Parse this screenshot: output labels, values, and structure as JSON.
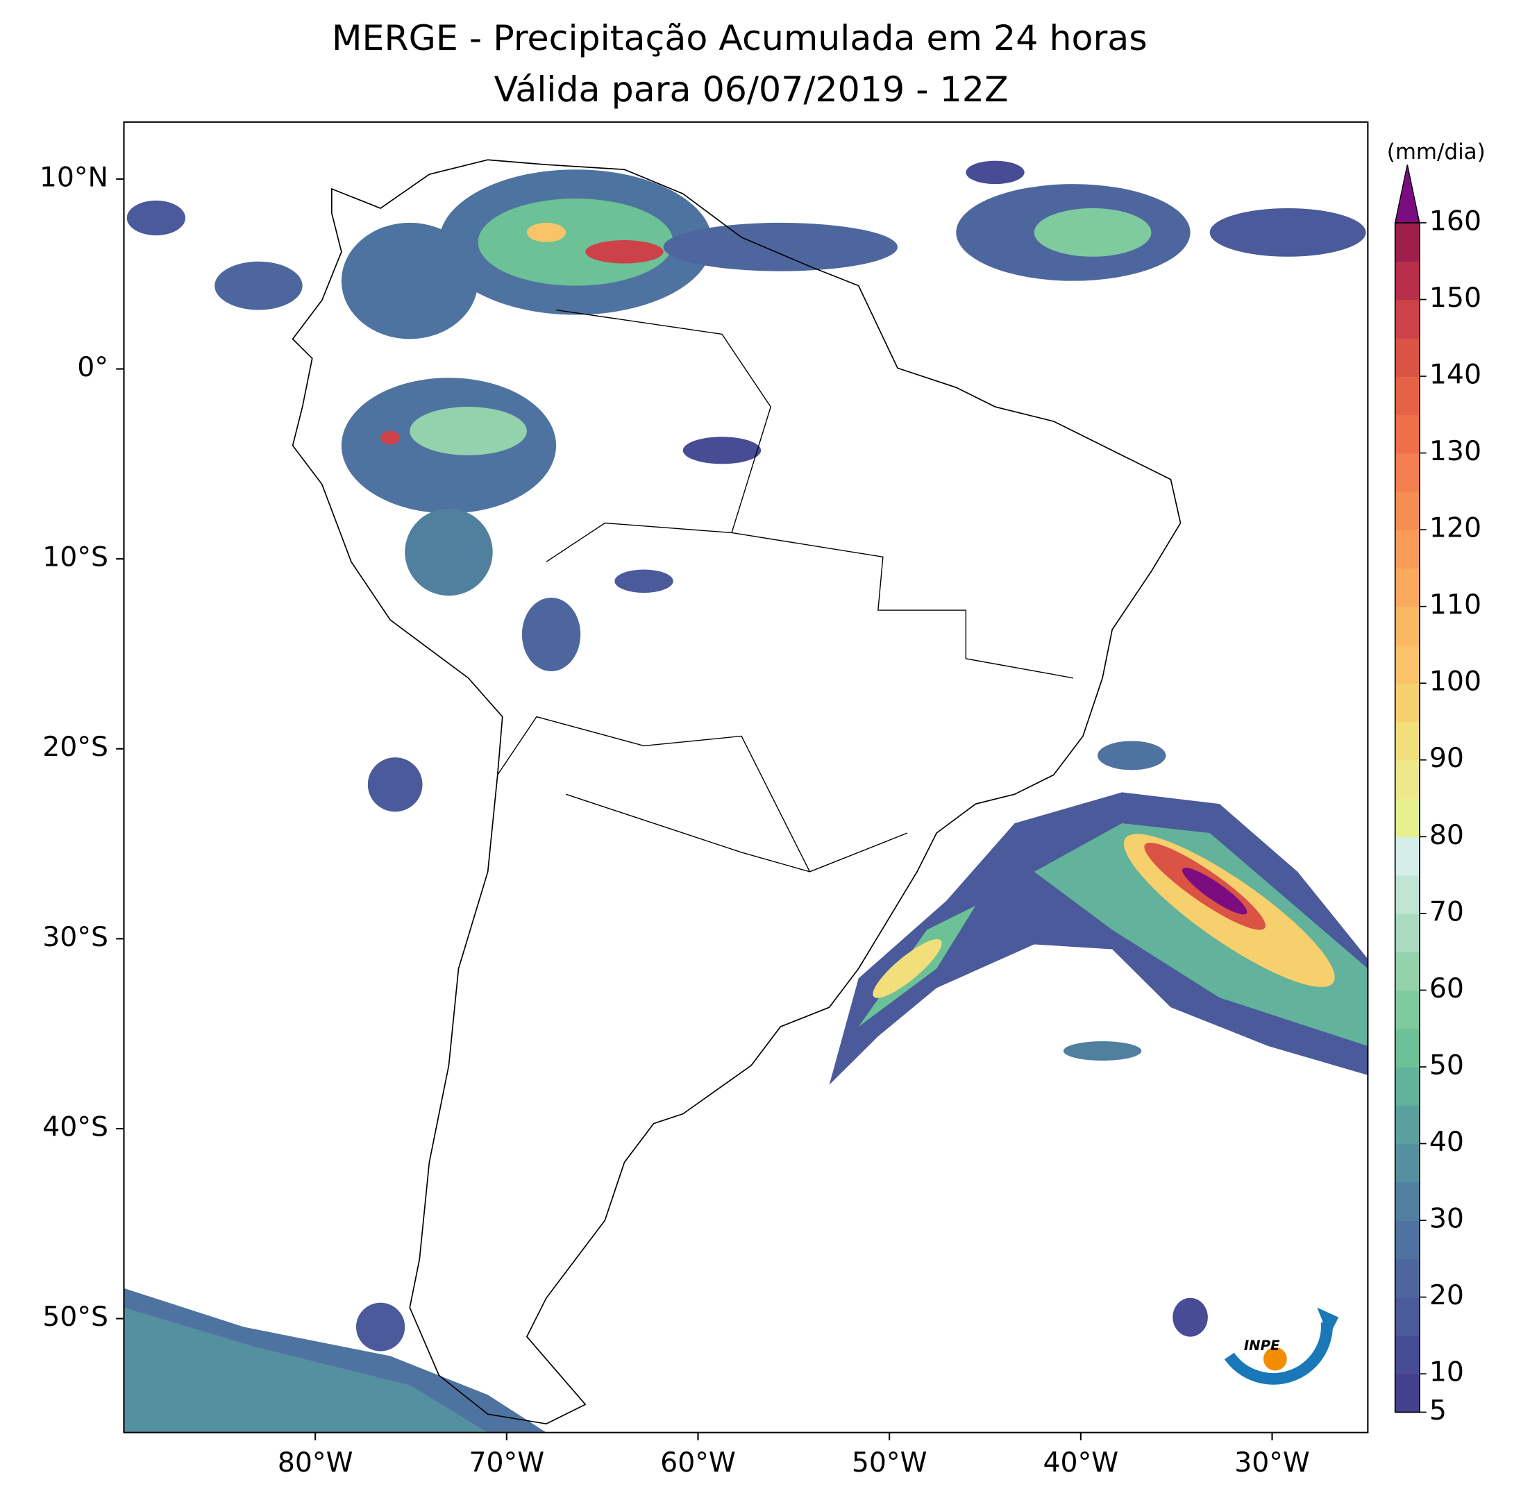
{
  "title": "MERGE - Precipitação Acumulada em 24 horas",
  "subtitle": "Válida para 06/07/2019 - 12Z",
  "map": {
    "xlim": [
      -90,
      -25
    ],
    "ylim": [
      -56,
      13
    ],
    "xticks": [
      {
        "value": -80,
        "label": "80°W"
      },
      {
        "value": -70,
        "label": "70°W"
      },
      {
        "value": -60,
        "label": "60°W"
      },
      {
        "value": -50,
        "label": "50°W"
      },
      {
        "value": -40,
        "label": "40°W"
      },
      {
        "value": -30,
        "label": "30°W"
      }
    ],
    "yticks": [
      {
        "value": 10,
        "label": "10°N"
      },
      {
        "value": 0,
        "label": "0°"
      },
      {
        "value": -10,
        "label": "10°S"
      },
      {
        "value": -20,
        "label": "20°S"
      },
      {
        "value": -30,
        "label": "30°S"
      },
      {
        "value": -40,
        "label": "40°S"
      },
      {
        "value": -50,
        "label": "50°S"
      }
    ]
  },
  "colorbar": {
    "label": "(mm/dia)",
    "lim": [
      5,
      160
    ],
    "ticks": [
      5,
      10,
      20,
      30,
      40,
      50,
      60,
      70,
      80,
      90,
      100,
      110,
      120,
      130,
      140,
      150,
      160
    ],
    "colors": [
      "#45408e",
      "#474c95",
      "#4a5a9a",
      "#4d679e",
      "#4f73a0",
      "#51809f",
      "#54909f",
      "#5aa09d",
      "#63b29b",
      "#6cc196",
      "#80ca9f",
      "#94d2ad",
      "#aadbc2",
      "#c0e5d3",
      "#d6eeea",
      "#e6f08f",
      "#eee88a",
      "#f3de7c",
      "#f7d06e",
      "#f9c469",
      "#fbb862",
      "#fba95d",
      "#f99c58",
      "#f68e54",
      "#f37f50",
      "#ee6f4a",
      "#e66246",
      "#db5345",
      "#cd4249",
      "#b82f4b",
      "#9e1f4b"
    ],
    "extend_color": "#7b0d80"
  },
  "logo": "INPE"
}
